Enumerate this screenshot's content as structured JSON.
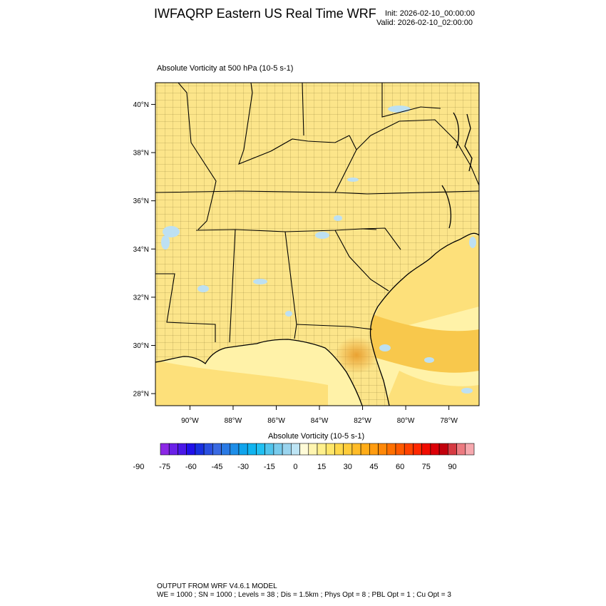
{
  "header": {
    "title": "IWFAQRP Eastern US Real Time WRF",
    "init": "Init: 2026-02-10_00:00:00",
    "valid": "Valid: 2026-02-10_02:00:00"
  },
  "field_label": "Absolute Vorticity at 500 hPa   (10-5 s-1)",
  "map": {
    "lat_labels": [
      "40°N",
      "38°N",
      "36°N",
      "34°N",
      "32°N",
      "30°N",
      "28°N"
    ],
    "lon_labels": [
      "90°W",
      "88°W",
      "86°W",
      "84°W",
      "82°W",
      "80°W",
      "78°W"
    ],
    "lat_range": [
      27.5,
      40.9
    ],
    "lon_range": [
      -91.6,
      -76.6
    ],
    "colors": {
      "land": "#fce58a",
      "ocean_light": "#fff2a8",
      "ocean_mid": "#fde07a",
      "ocean_strong": "#f8c84c",
      "max": "#eeaa38",
      "negative": "#bde0f2"
    }
  },
  "colorbar": {
    "title": "Absolute Vorticity  (10-5 s-1)",
    "labels": [
      "-90",
      "-75",
      "-60",
      "-45",
      "-30",
      "-15",
      "0",
      "15",
      "30",
      "45",
      "60",
      "75",
      "90"
    ],
    "colors": [
      "#8c28e6",
      "#6a20e8",
      "#4a18e8",
      "#2010ea",
      "#1830e0",
      "#2a50e0",
      "#3a6ae2",
      "#2a7ae4",
      "#1e8ee8",
      "#10a4ec",
      "#10b4f0",
      "#20c0f2",
      "#50c4ec",
      "#78cbec",
      "#9ad4ee",
      "#bde4f4",
      "#fffbd8",
      "#fff5b0",
      "#fff08c",
      "#ffe66a",
      "#ffd84a",
      "#ffcc3a",
      "#ffbc28",
      "#ffac18",
      "#ff9c10",
      "#ff8808",
      "#ff7000",
      "#ff5a00",
      "#ff4200",
      "#ff2800",
      "#f00c00",
      "#dc0008",
      "#c2000c",
      "#d63a42",
      "#ec7a80",
      "#f6a8ae"
    ]
  },
  "footer": {
    "line1": "OUTPUT FROM WRF V4.6.1 MODEL",
    "line2": "WE = 1000 ; SN = 1000 ; Levels = 38 ; Dis = 1.5km ; Phys Opt = 8 ; PBL Opt = 1 ; Cu Opt = 3"
  }
}
